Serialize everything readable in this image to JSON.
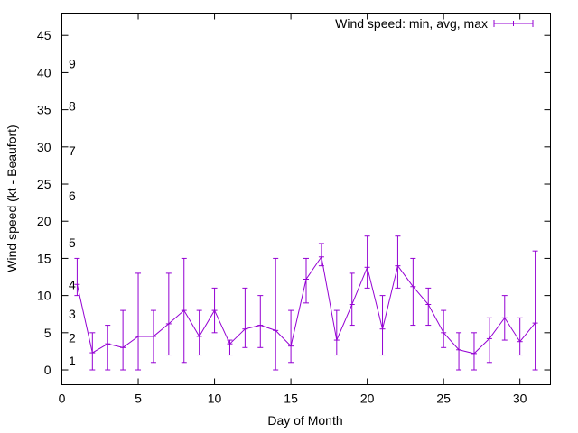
{
  "chart_data": {
    "type": "line",
    "title": "",
    "xlabel": "Day of Month",
    "ylabel": "Wind speed (kt - Beaufort)",
    "xlim": [
      0,
      32
    ],
    "ylim": [
      -2,
      48
    ],
    "x_ticks": [
      0,
      5,
      10,
      15,
      20,
      25,
      30
    ],
    "y_ticks": [
      0,
      5,
      10,
      15,
      20,
      25,
      30,
      35,
      40,
      45
    ],
    "grid": false,
    "legend_position": "top-right",
    "beaufort_labels": [
      {
        "label": "1",
        "y": 1.2
      },
      {
        "label": "2",
        "y": 4.3
      },
      {
        "label": "3",
        "y": 7.5
      },
      {
        "label": "4",
        "y": 11.5
      },
      {
        "label": "5",
        "y": 17.1
      },
      {
        "label": "6",
        "y": 23.4
      },
      {
        "label": "7",
        "y": 29.5
      },
      {
        "label": "8",
        "y": 35.5
      },
      {
        "label": "9",
        "y": 41.2
      }
    ],
    "series": [
      {
        "name": "Wind speed: min, avg, max",
        "color": "#9400d3",
        "x": [
          1,
          2,
          3,
          4,
          5,
          6,
          7,
          8,
          9,
          10,
          11,
          12,
          13,
          14,
          15,
          16,
          17,
          18,
          19,
          20,
          21,
          22,
          23,
          24,
          25,
          26,
          27,
          28,
          29,
          30,
          31
        ],
        "avg": [
          11.5,
          2.3,
          3.5,
          3.0,
          4.5,
          4.5,
          6.2,
          8.0,
          4.5,
          8.0,
          3.5,
          5.5,
          6.0,
          5.3,
          3.2,
          12.2,
          15.2,
          4.0,
          8.8,
          13.8,
          5.5,
          14.0,
          11.2,
          8.8,
          5.0,
          2.7,
          2.2,
          4.2,
          7.0,
          3.8,
          6.3
        ],
        "min": [
          10,
          0,
          0,
          0,
          0,
          1,
          2,
          1,
          2,
          5,
          2,
          3,
          3,
          0,
          1,
          9,
          14,
          2,
          6,
          11,
          2,
          11,
          6,
          6,
          3,
          0,
          0,
          1,
          4,
          2,
          0
        ],
        "max": [
          15,
          5,
          6,
          8,
          13,
          8,
          13,
          15,
          8,
          11,
          4,
          11,
          10,
          15,
          8,
          15,
          17,
          8,
          13,
          18,
          10,
          18,
          15,
          11,
          8,
          5,
          5,
          7,
          10,
          7,
          16
        ]
      }
    ]
  }
}
